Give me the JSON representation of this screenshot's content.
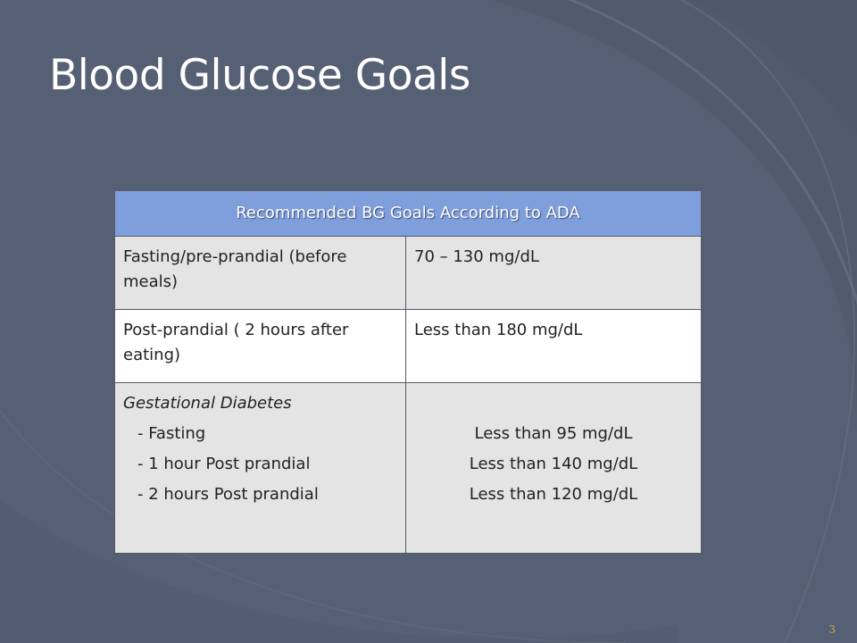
{
  "slide": {
    "title": "Blood Glucose Goals",
    "page_number": "3"
  },
  "table": {
    "header": "Recommended BG Goals According to ADA",
    "rows": [
      {
        "label": "Fasting/pre-prandial (before meals)",
        "value": "70 – 130 mg/dL"
      },
      {
        "label": "Post-prandial ( 2 hours after eating)",
        "value": "Less than 180 mg/dL"
      }
    ],
    "gestational": {
      "title": "Gestational Diabetes",
      "items": [
        {
          "label": "- Fasting",
          "value": "Less than 95 mg/dL"
        },
        {
          "label": "- 1 hour Post prandial",
          "value": "Less than 140 mg/dL"
        },
        {
          "label": "- 2 hours Post prandial",
          "value": "Less than 120 mg/dL"
        }
      ]
    }
  },
  "colors": {
    "background": "#5a6478",
    "header_fill": "#7f9fdc",
    "row_gray": "#e4e4e4",
    "row_white": "#ffffff",
    "title_text": "#ffffff",
    "page_number": "#c9a94a"
  }
}
